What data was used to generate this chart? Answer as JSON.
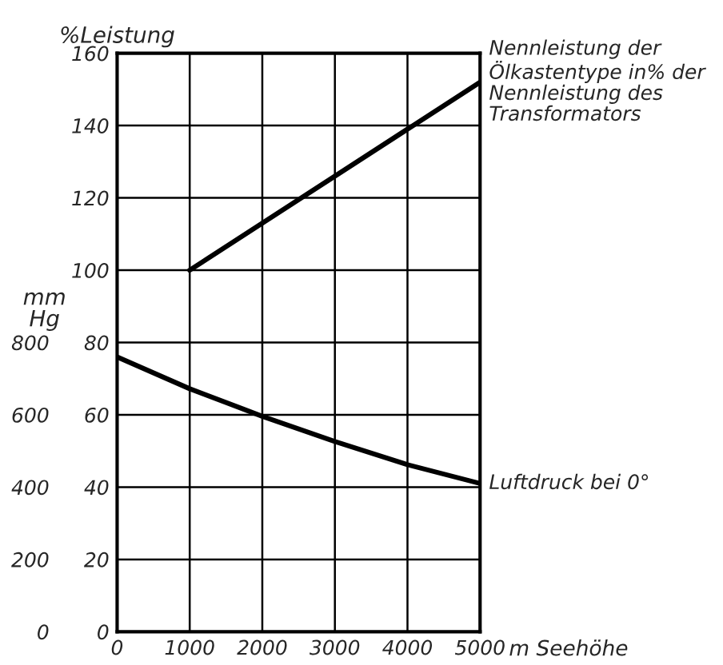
{
  "chart_data": {
    "type": "line",
    "ylabel": "%Leistung",
    "y2label": "mm Hg",
    "xlabel": "m Seehöhe",
    "xlim": [
      0,
      5000
    ],
    "xticks": [
      0,
      1000,
      2000,
      3000,
      4000,
      5000
    ],
    "ylim": [
      0,
      160
    ],
    "yticks": [
      0,
      20,
      40,
      60,
      80,
      100,
      120,
      140,
      160
    ],
    "y2lim": [
      0,
      1600
    ],
    "y2ticks": [
      0,
      200,
      400,
      600,
      800
    ],
    "grid": true,
    "legend": false,
    "marker": "none",
    "line_style": "solid",
    "series": [
      {
        "name": "Nennleistung der Ölkastentype in% der Nennleistung des Transformators",
        "color": "#000000",
        "x": [
          1000,
          5000
        ],
        "values": [
          100,
          152
        ]
      },
      {
        "name": "Luftdruck bei 0°",
        "color": "#000000",
        "axis": "y2",
        "x": [
          0,
          1000,
          2000,
          3000,
          4000,
          5000
        ],
        "values": [
          760,
          672,
          596,
          526,
          462,
          410
        ]
      }
    ]
  }
}
